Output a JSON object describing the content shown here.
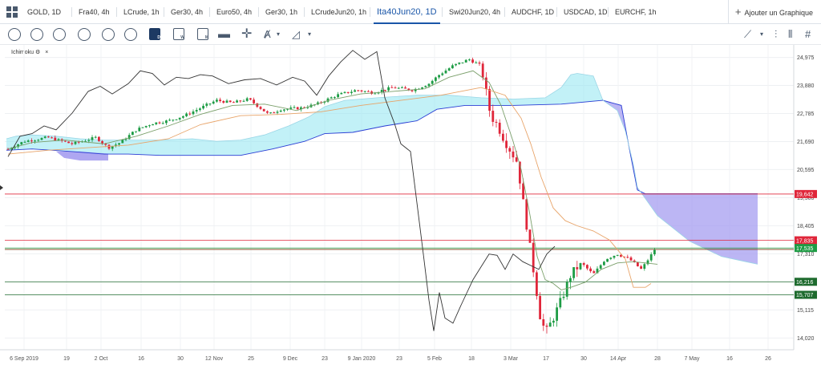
{
  "tabs": [
    {
      "label": "GOLD, 1D"
    },
    {
      "label": "Fra40, 4h"
    },
    {
      "label": "LCrude, 1h"
    },
    {
      "label": "Ger30, 4h"
    },
    {
      "label": "Euro50, 4h"
    },
    {
      "label": "Ger30, 1h"
    },
    {
      "label": "LCrudeJun20, 1h"
    },
    {
      "label": "Ita40Jun20, 1D",
      "active": true
    },
    {
      "label": "Swi20Jun20, 4h"
    },
    {
      "label": "AUDCHF, 1D"
    },
    {
      "label": "USDCAD, 1D"
    },
    {
      "label": "EURCHF, 1h"
    }
  ],
  "add_chart_label": "Ajouter un Graphique",
  "toolbar": {
    "chart_type_labels": [
      "D",
      "W",
      "M"
    ],
    "icons": [
      "crosshair-icon",
      "clock-icon",
      "pie-icon",
      "contrast-icon",
      "layers-icon",
      "calendar-d-icon",
      "calendar-w-icon",
      "calendar-m-icon",
      "move-icon",
      "annotate-icon",
      "ruler-icon",
      "trend-icon",
      "bar-settings-icon",
      "grid-icon"
    ]
  },
  "indicator": {
    "name": "Ichimoku",
    "gear": "⚙",
    "close": "×"
  },
  "colors": {
    "up": "#1e9c45",
    "down": "#e0263a",
    "kijun": "#e8a469",
    "tenkan": "#7a9f6a",
    "chikou": "#333333",
    "senkou_a": "#2a3ed4",
    "cloud_bull": "#8fe6f0",
    "cloud_bear": "#a59df0",
    "accent": "#1a56a8"
  },
  "chart_data": {
    "type": "candlestick",
    "instrument": "Ita40Jun20",
    "timeframe": "1D",
    "x_ticks": [
      "6 Sep 2019",
      "19",
      "2 Oct",
      "16",
      "30",
      "12 Nov",
      "25",
      "9 Dec",
      "23",
      "9 Jan 2020",
      "23",
      "5 Feb",
      "18",
      "3 Mar",
      "17",
      "30",
      "14 Apr",
      "28",
      "7 May",
      "16",
      "26"
    ],
    "y_ticks": [
      "24,975",
      "23,880",
      "22,785",
      "21,690",
      "20,595",
      "19,500",
      "18,405",
      "17,310",
      "16,215",
      "15,115",
      "14,020"
    ],
    "ylim": [
      13500,
      25400
    ],
    "price_levels": [
      {
        "value": 19642,
        "label": "19,642",
        "color": "#e0263a"
      },
      {
        "value": 17835,
        "label": "17,835",
        "color": "#e0263a"
      },
      {
        "value": 17535,
        "label": "17,535",
        "color": "#1e9c45"
      },
      {
        "value": 16216,
        "label": "16,216",
        "color": "#1e6b2e"
      },
      {
        "value": 15707,
        "label": "15,707",
        "color": "#1e6b2e"
      }
    ],
    "grid": true
  }
}
